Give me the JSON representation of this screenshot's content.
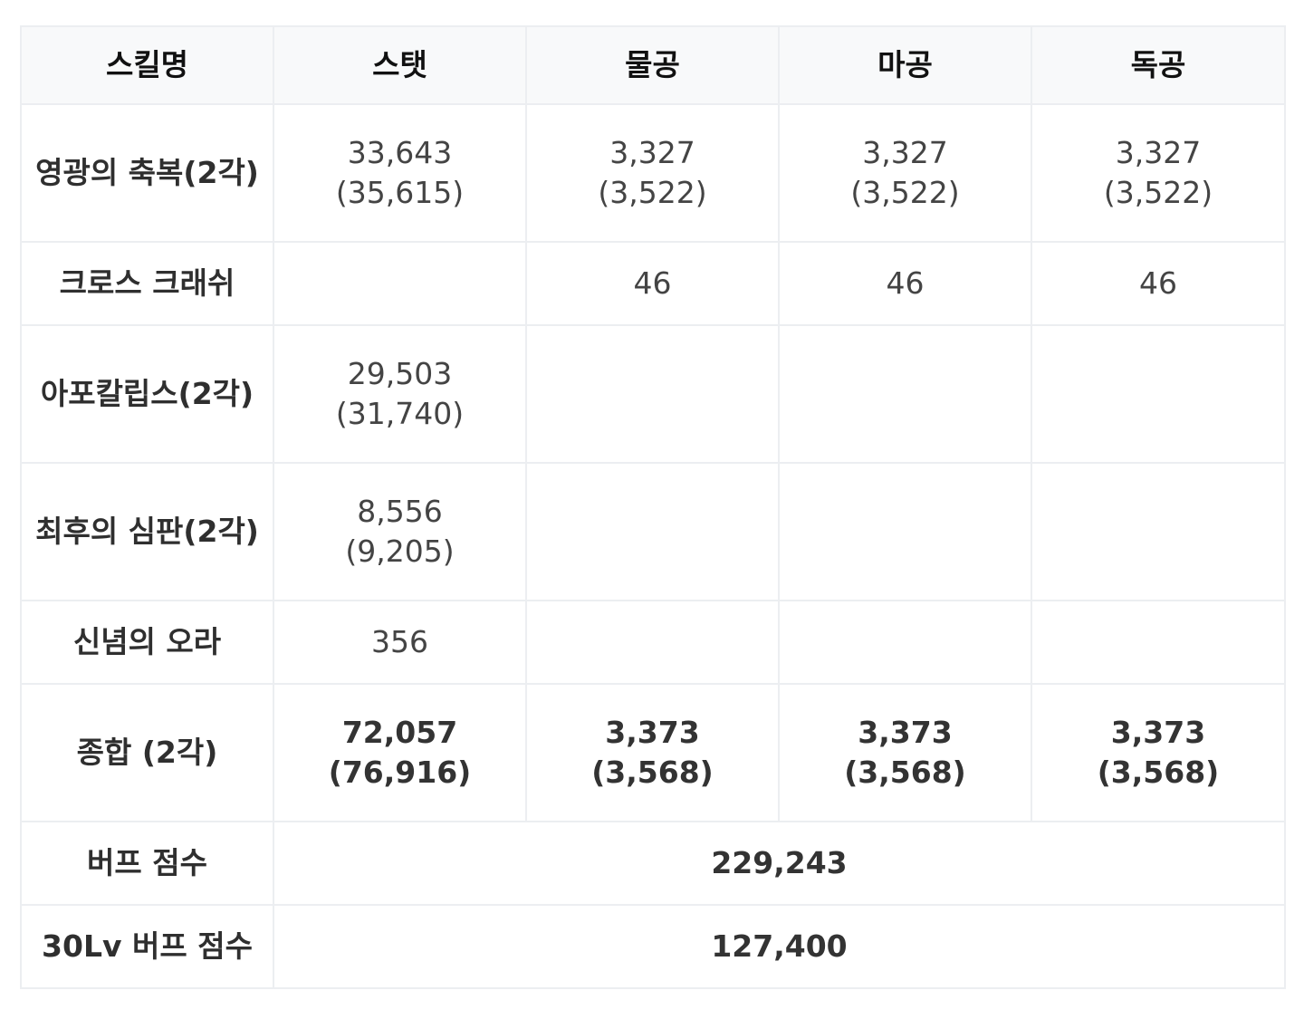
{
  "headers": [
    "스킬명",
    "스탯",
    "물공",
    "마공",
    "독공"
  ],
  "rows": [
    {
      "skill": "영광의 축복(2각)",
      "stat": [
        "33,643",
        "(35,615)"
      ],
      "phys": [
        "3,327",
        "(3,522)"
      ],
      "mag": [
        "3,327",
        "(3,522)"
      ],
      "poison": [
        "3,327",
        "(3,522)"
      ]
    },
    {
      "skill": "크로스 크래쉬",
      "stat": [],
      "phys": [
        "46"
      ],
      "mag": [
        "46"
      ],
      "poison": [
        "46"
      ]
    },
    {
      "skill": "아포칼립스(2각)",
      "stat": [
        "29,503",
        "(31,740)"
      ],
      "phys": [],
      "mag": [],
      "poison": []
    },
    {
      "skill": "최후의 심판(2각)",
      "stat": [
        "8,556",
        "(9,205)"
      ],
      "phys": [],
      "mag": [],
      "poison": []
    },
    {
      "skill": "신념의 오라",
      "stat": [
        "356"
      ],
      "phys": [],
      "mag": [],
      "poison": []
    },
    {
      "skill": "종합 (2각)",
      "stat": [
        "72,057",
        "(76,916)"
      ],
      "phys": [
        "3,373",
        "(3,568)"
      ],
      "mag": [
        "3,373",
        "(3,568)"
      ],
      "poison": [
        "3,373",
        "(3,568)"
      ]
    }
  ],
  "scores": [
    {
      "label": "버프 점수",
      "value": "229,243"
    },
    {
      "label": "30Lv 버프 점수",
      "value": "127,400"
    }
  ]
}
